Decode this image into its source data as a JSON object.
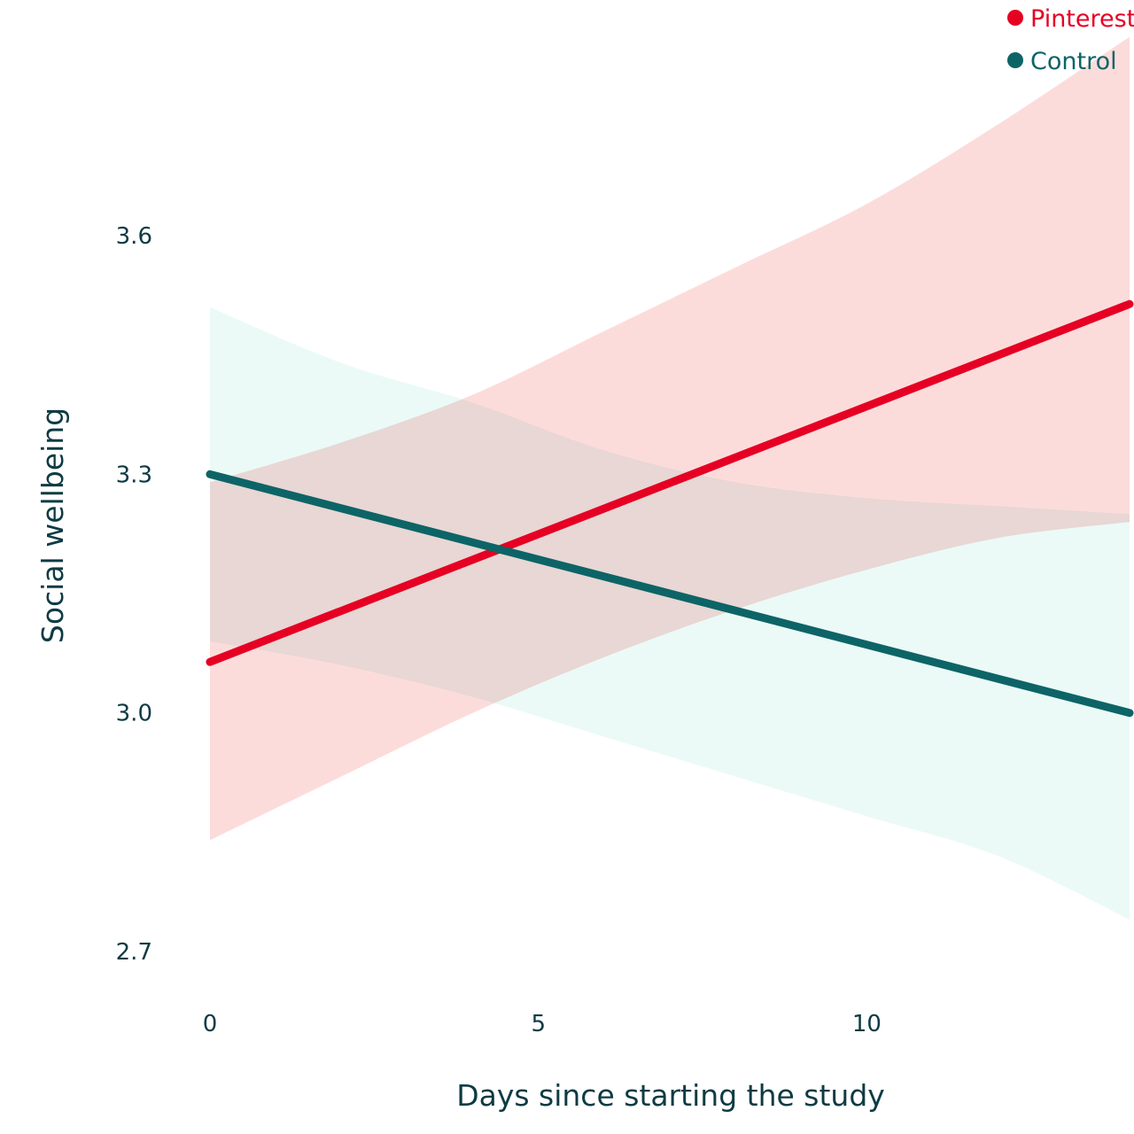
{
  "chart_data": {
    "type": "line",
    "xlabel": "Days since starting the study",
    "ylabel": "Social wellbeing",
    "xlim": [
      0,
      14
    ],
    "ylim": [
      2.7,
      3.6
    ],
    "x_ticks": [
      {
        "value": 0,
        "label": "0"
      },
      {
        "value": 5,
        "label": "5"
      },
      {
        "value": 10,
        "label": "10"
      }
    ],
    "y_ticks": [
      {
        "value": 3.6,
        "label": "3.6"
      },
      {
        "value": 3.3,
        "label": "3.3"
      },
      {
        "value": 3.0,
        "label": "3.0"
      },
      {
        "value": 2.7,
        "label": "2.7"
      }
    ],
    "grid": false,
    "legend_position": "top-right",
    "series": [
      {
        "name": "Pinterest",
        "color": "#e60023",
        "band_color": "#fcdcdb",
        "x": [
          0,
          14
        ],
        "values": [
          3.064,
          3.514
        ],
        "band_x": [
          0,
          2,
          4,
          6,
          8,
          10,
          12,
          14
        ],
        "band_lower": [
          2.84,
          2.92,
          3.0,
          3.07,
          3.13,
          3.18,
          3.22,
          3.24
        ],
        "band_upper": [
          3.29,
          3.34,
          3.4,
          3.48,
          3.56,
          3.64,
          3.74,
          3.85
        ]
      },
      {
        "name": "Control",
        "color": "#0d6466",
        "band_color": "#e4f8f4",
        "x": [
          0,
          14
        ],
        "values": [
          3.3,
          3.0
        ],
        "band_x": [
          0,
          2,
          4,
          6,
          8,
          10,
          12,
          14
        ],
        "band_lower": [
          3.09,
          3.06,
          3.02,
          2.97,
          2.92,
          2.87,
          2.82,
          2.74
        ],
        "band_upper": [
          3.51,
          3.44,
          3.39,
          3.33,
          3.29,
          3.27,
          3.26,
          3.25
        ]
      }
    ]
  }
}
